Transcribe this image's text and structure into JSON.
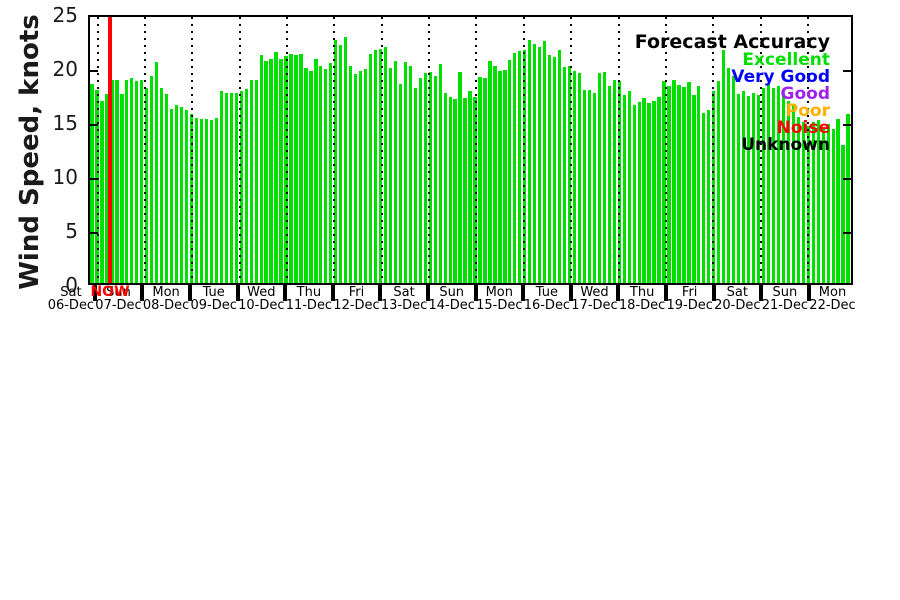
{
  "chart_data": {
    "type": "bar",
    "title": "",
    "ylabel": "Wind Speed, knots",
    "ylim": [
      0,
      25
    ],
    "yticks": [
      0,
      5,
      10,
      15,
      20,
      25
    ],
    "grid": "vertical dotted lines at each midnight",
    "bar_color": "#00e000",
    "x_day_labels": [
      {
        "day": "Sat",
        "date": "06-Dec"
      },
      {
        "day": "Sun",
        "date": "07-Dec"
      },
      {
        "day": "Mon",
        "date": "08-Dec"
      },
      {
        "day": "Tue",
        "date": "09-Dec"
      },
      {
        "day": "Wed",
        "date": "10-Dec"
      },
      {
        "day": "Thu",
        "date": "11-Dec"
      },
      {
        "day": "Fri",
        "date": "12-Dec"
      },
      {
        "day": "Sat",
        "date": "13-Dec"
      },
      {
        "day": "Sun",
        "date": "14-Dec"
      },
      {
        "day": "Mon",
        "date": "15-Dec"
      },
      {
        "day": "Tue",
        "date": "16-Dec"
      },
      {
        "day": "Wed",
        "date": "17-Dec"
      },
      {
        "day": "Thu",
        "date": "18-Dec"
      },
      {
        "day": "Fri",
        "date": "19-Dec"
      },
      {
        "day": "Sat",
        "date": "20-Dec"
      },
      {
        "day": "Sun",
        "date": "21-Dec"
      },
      {
        "day": "Mon",
        "date": "22-Dec"
      }
    ],
    "values": [
      18.7,
      18.1,
      17.1,
      17.8,
      19.1,
      19.1,
      17.8,
      19.1,
      19.3,
      19.0,
      19.1,
      18.3,
      19.5,
      20.8,
      18.3,
      17.8,
      16.4,
      16.7,
      16.5,
      16.3,
      15.9,
      15.5,
      15.4,
      15.4,
      15.3,
      15.5,
      18.0,
      17.9,
      17.9,
      17.9,
      18.0,
      18.2,
      19.1,
      19.1,
      21.4,
      20.9,
      21.1,
      21.7,
      21.1,
      21.3,
      21.5,
      21.4,
      21.5,
      20.2,
      19.9,
      21.1,
      20.4,
      20.1,
      20.7,
      22.8,
      22.4,
      23.1,
      20.4,
      19.6,
      19.9,
      20.1,
      21.5,
      21.9,
      22.0,
      22.2,
      20.2,
      20.9,
      18.7,
      20.8,
      20.4,
      18.3,
      19.3,
      19.7,
      19.8,
      19.5,
      20.6,
      17.9,
      17.5,
      17.3,
      19.8,
      17.4,
      18.0,
      17.5,
      19.4,
      19.3,
      20.9,
      20.4,
      19.9,
      20.0,
      21.0,
      21.6,
      21.8,
      21.9,
      22.8,
      22.5,
      22.2,
      22.7,
      21.4,
      21.2,
      21.9,
      20.3,
      20.4,
      19.9,
      19.7,
      18.1,
      18.1,
      17.9,
      19.7,
      19.8,
      18.5,
      19.1,
      19.0,
      17.7,
      18.0,
      16.7,
      17.0,
      17.4,
      16.9,
      17.1,
      17.5,
      19.0,
      18.5,
      19.1,
      18.6,
      18.4,
      18.9,
      17.7,
      18.5,
      16.0,
      16.3,
      18.0,
      19.0,
      21.9,
      20.2,
      19.5,
      17.8,
      18.0,
      17.6,
      17.9,
      17.7,
      18.3,
      18.7,
      18.3,
      18.5,
      17.8,
      17.1,
      16.7,
      15.6,
      15.1,
      14.8,
      15.1,
      15.3,
      14.6,
      14.9,
      14.5,
      15.4,
      13.0,
      15.9
    ],
    "now_marker": {
      "label": "NOW",
      "color": "#ff0000"
    },
    "legend": {
      "title": "Forecast Accuracy",
      "title_color": "#000000",
      "position": "top-right",
      "entries": [
        {
          "label": "Excellent",
          "color": "#00e000"
        },
        {
          "label": "Very Good",
          "color": "#0000ff"
        },
        {
          "label": "Good",
          "color": "#a020f0"
        },
        {
          "label": "Poor",
          "color": "#ffb000"
        },
        {
          "label": "Noise",
          "color": "#ff0000"
        },
        {
          "label": "Unknown",
          "color": "#000000"
        }
      ]
    }
  }
}
